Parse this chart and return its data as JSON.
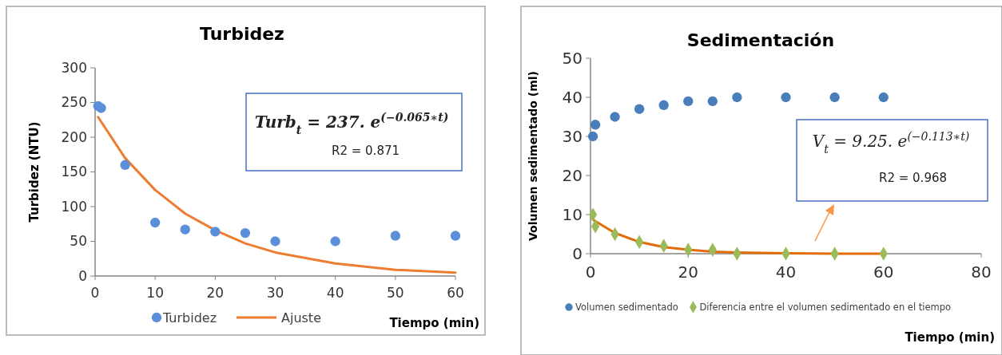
{
  "chart_data": [
    {
      "type": "scatter",
      "title": "Turbidez",
      "xlabel": "Tiempo (min)",
      "ylabel": "Turbidez (NTU)",
      "xlim": [
        0,
        60
      ],
      "xticks": [
        0,
        10,
        20,
        30,
        40,
        50,
        60
      ],
      "ylim": [
        0,
        300
      ],
      "yticks": [
        0,
        50,
        100,
        150,
        200,
        250,
        300
      ],
      "legend": "bottom",
      "annotations": [
        "Turb$_{t}$ = 237. e$^{(−0.065∗t)}$",
        "R2 = 0.871"
      ],
      "series": [
        {
          "name": "Turbidez",
          "marker": "circle",
          "color": "#5b8fd9",
          "x": [
            0.5,
            1,
            5,
            10,
            15,
            20,
            25,
            30,
            40,
            50,
            60
          ],
          "values": [
            245,
            242,
            160,
            77,
            67,
            64,
            62,
            50,
            50,
            58,
            58
          ]
        },
        {
          "name": "Ajuste",
          "type": "line",
          "color": "#ed7d31",
          "x": [
            0.5,
            5,
            10,
            15,
            20,
            25,
            30,
            40,
            50,
            60
          ],
          "values": [
            229,
            170,
            124,
            90,
            66,
            47,
            34,
            18,
            9,
            5
          ]
        }
      ]
    },
    {
      "type": "scatter",
      "title": "Sedimentación",
      "xlabel": "Tiempo (min)",
      "ylabel": "Volumen sedimentado (ml)",
      "xlim": [
        0,
        80
      ],
      "xticks": [
        0,
        20,
        40,
        60,
        80
      ],
      "ylim": [
        0,
        50
      ],
      "yticks": [
        0,
        10,
        20,
        30,
        40,
        50
      ],
      "legend": "bottom",
      "annotations": [
        "V$_{t}$ = 9.25. e$^{(−0.113∗t)}$",
        "R2 = 0.968"
      ],
      "series": [
        {
          "name": "Volumen sedimentado",
          "marker": "circle",
          "color": "#4a7ebb",
          "x": [
            0.5,
            1,
            5,
            10,
            15,
            20,
            25,
            30,
            40,
            50,
            60
          ],
          "values": [
            30,
            33,
            35,
            37,
            38,
            39,
            39,
            40,
            40,
            40,
            40
          ]
        },
        {
          "type": "line",
          "color": "#e36c0a",
          "x": [
            0.5,
            1,
            5,
            10,
            15,
            20,
            25,
            30,
            40,
            50,
            60
          ],
          "values": [
            8.7,
            8.3,
            5.3,
            3.0,
            1.7,
            1.0,
            0.5,
            0.3,
            0.1,
            0,
            0
          ]
        },
        {
          "name": "Diferencia entre el volumen sedimentado en el tiempo",
          "marker": "diamond",
          "color": "#9bbb59",
          "x": [
            0.5,
            1,
            5,
            10,
            15,
            20,
            25,
            30,
            40,
            50,
            60
          ],
          "values": [
            10,
            7,
            5,
            3,
            2,
            1,
            1,
            0,
            0,
            0,
            0
          ]
        }
      ]
    }
  ]
}
